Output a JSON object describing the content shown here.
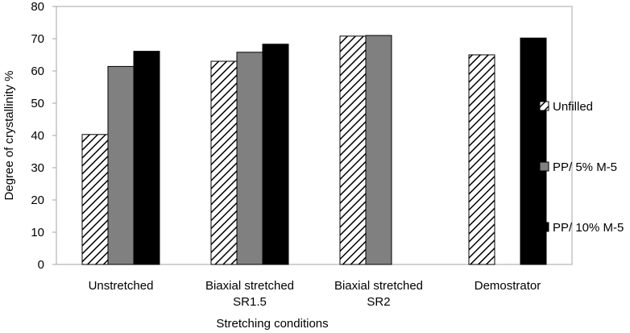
{
  "chart_data": {
    "type": "bar",
    "title": "",
    "xlabel": "Stretching conditions",
    "ylabel": "Degree of crystallinity %",
    "ylim": [
      0,
      80
    ],
    "ytick_step": 10,
    "grid": false,
    "legend_position": "right",
    "categories": [
      [
        "Unstretched"
      ],
      [
        "Biaxial stretched",
        "SR1.5"
      ],
      [
        "Biaxial stretched",
        "SR2"
      ],
      [
        "Demostrator"
      ]
    ],
    "series": [
      {
        "name": "Unfilled",
        "style": "hatched",
        "color": "#000000",
        "values": [
          40.3,
          63,
          70.8,
          65
        ]
      },
      {
        "name": "PP/ 5% M-5",
        "style": "solid",
        "color": "#808080",
        "values": [
          61.4,
          65.8,
          71,
          null
        ]
      },
      {
        "name": "PP/ 10% M-5",
        "style": "solid",
        "color": "#000000",
        "values": [
          66.1,
          68.3,
          null,
          70.2
        ]
      }
    ]
  }
}
